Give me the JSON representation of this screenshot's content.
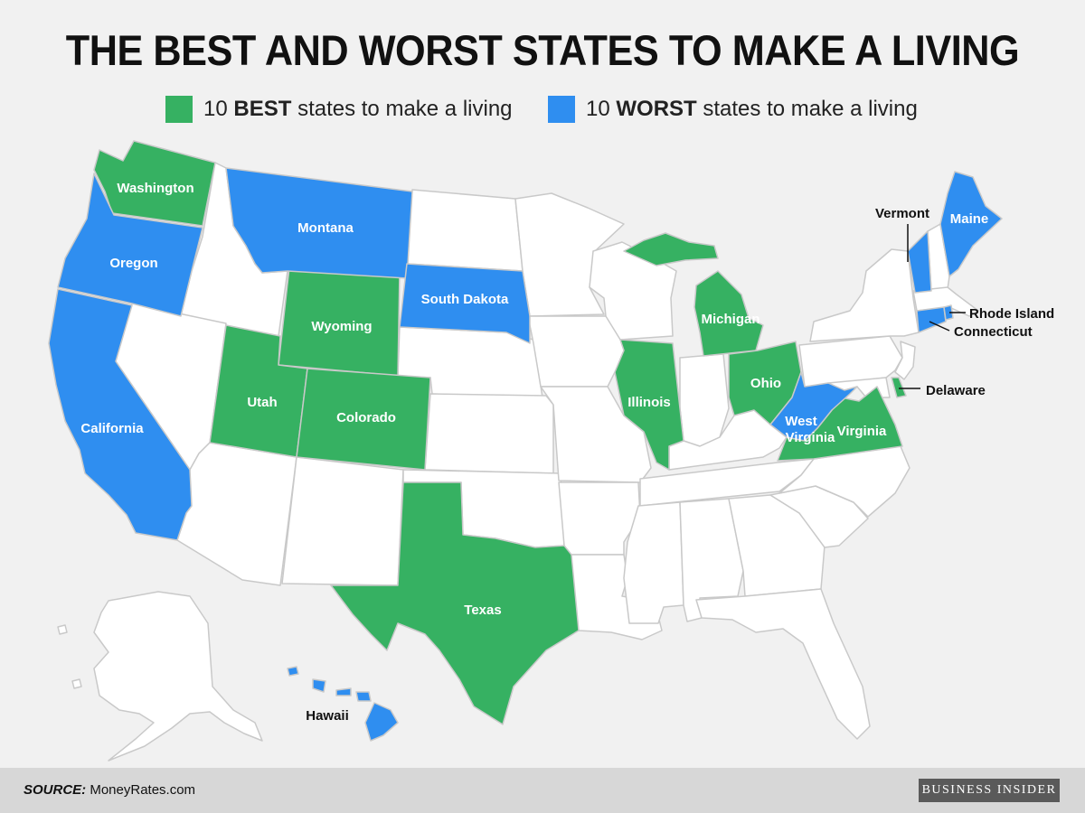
{
  "title": "THE BEST AND WORST STATES TO MAKE A LIVING",
  "legend": {
    "best": {
      "count": "10",
      "bold": "BEST",
      "rest": "states to make a living",
      "color": "#36b162"
    },
    "worst": {
      "count": "10",
      "bold": "WORST",
      "rest": "states to make a living",
      "color": "#2f8ef0"
    }
  },
  "colors": {
    "best": "#36b162",
    "worst": "#2f8ef0",
    "other": "#ffffff",
    "border": "#c9c9c9"
  },
  "best_states": [
    "Washington",
    "Wyoming",
    "Utah",
    "Colorado",
    "Texas",
    "Illinois",
    "Michigan",
    "Ohio",
    "Virginia",
    "Delaware"
  ],
  "worst_states": [
    "Oregon",
    "California",
    "Montana",
    "South Dakota",
    "Maine",
    "Vermont",
    "Connecticut",
    "Rhode Island",
    "West Virginia",
    "Hawaii"
  ],
  "labels": {
    "washington": "Washington",
    "oregon": "Oregon",
    "california": "California",
    "montana": "Montana",
    "wyoming": "Wyoming",
    "utah": "Utah",
    "colorado": "Colorado",
    "south_dakota": "South Dakota",
    "texas": "Texas",
    "illinois": "Illinois",
    "michigan": "Michigan",
    "ohio": "Ohio",
    "west_virginia_1": "West",
    "west_virginia_2": "Virginia",
    "virginia": "Virginia",
    "maine": "Maine",
    "vermont": "Vermont",
    "rhode_island": "Rhode Island",
    "connecticut": "Connecticut",
    "delaware": "Delaware",
    "hawaii": "Hawaii"
  },
  "footer": {
    "source_label": "SOURCE:",
    "source_value": "MoneyRates.com",
    "brand": "BUSINESS INSIDER"
  }
}
